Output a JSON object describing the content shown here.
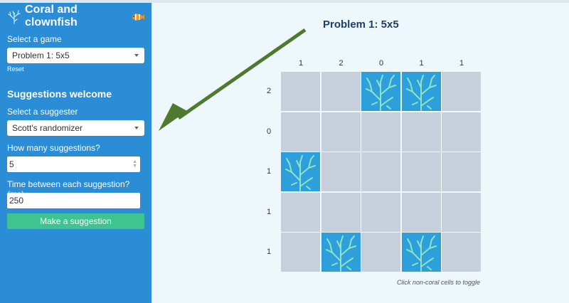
{
  "app": {
    "title": "Coral and clownfish"
  },
  "sidebar": {
    "select_game_label": "Select a game",
    "game_selected": "Problem 1: 5x5",
    "reset_label": "Reset",
    "section_title": "Suggestions welcome",
    "select_suggester_label": "Select a suggester",
    "suggester_selected": "Scott's randomizer",
    "count_label": "How many suggestions?",
    "count_value": "5",
    "interval_label": "Time between each suggestion? (ms)",
    "interval_value": "250",
    "suggest_button": "Make a suggestion"
  },
  "puzzle": {
    "title": "Problem 1: 5x5",
    "col_clues": [
      "1",
      "2",
      "0",
      "1",
      "1"
    ],
    "row_clues": [
      "2",
      "0",
      "1",
      "1",
      "1"
    ],
    "grid": [
      [
        0,
        0,
        1,
        1,
        0
      ],
      [
        0,
        0,
        0,
        0,
        0
      ],
      [
        1,
        0,
        0,
        0,
        0
      ],
      [
        0,
        0,
        0,
        0,
        0
      ],
      [
        0,
        1,
        0,
        1,
        0
      ]
    ],
    "hint": "Click non-coral cells to toggle"
  },
  "colors": {
    "sidebar": "#2a8dd6",
    "button": "#3fc390",
    "cell_empty": "#c6d0dc",
    "cell_coral": "#2d9fdb",
    "coral_branch": "#8fe3c4",
    "arrow": "#4f7a2e"
  },
  "icons": {
    "logo": "coral-icon",
    "fish": "clownfish-icon",
    "cell": "coral-icon"
  }
}
